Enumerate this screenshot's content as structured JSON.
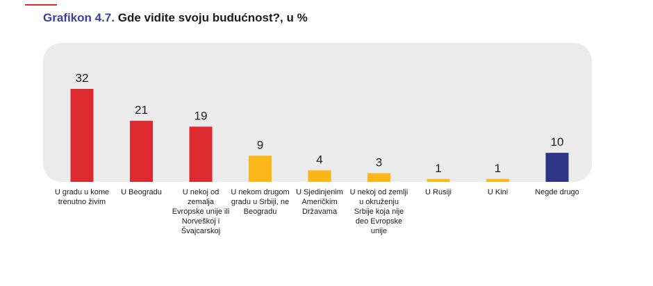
{
  "header": {
    "title_prefix": "Grafikon 4.7.",
    "title_text": "Gde vidite svoju budućnost?, u %"
  },
  "colors": {
    "red": "#dc2a2e",
    "yellow": "#fbb718",
    "navy": "#2c3586",
    "accent": "#3b3f9c"
  },
  "chart_data": {
    "type": "bar",
    "title": "Gde vidite svoju budućnost?, u %",
    "categories": [
      "U gradu u kome trenutno živim",
      "U Beogradu",
      "U nekoj od zemalja Evropske unije ili Norveškoj i Švajcarskoj",
      "U nekom drugom gradu u Srbiji, ne Beogradu",
      "U Sjedinjenim Američkim Državama",
      "U nekoj od zemlji u okruženju Srbije koja nije deo Evropske unije",
      "U Rusiji",
      "U Kini",
      "Negde drugo"
    ],
    "values": [
      32,
      21,
      19,
      9,
      4,
      3,
      1,
      1,
      10
    ],
    "bar_colors": [
      "red",
      "red",
      "red",
      "yellow",
      "yellow",
      "yellow",
      "yellow",
      "yellow",
      "navy"
    ],
    "ylim": [
      0,
      32
    ],
    "xlabel": "",
    "ylabel": ""
  }
}
